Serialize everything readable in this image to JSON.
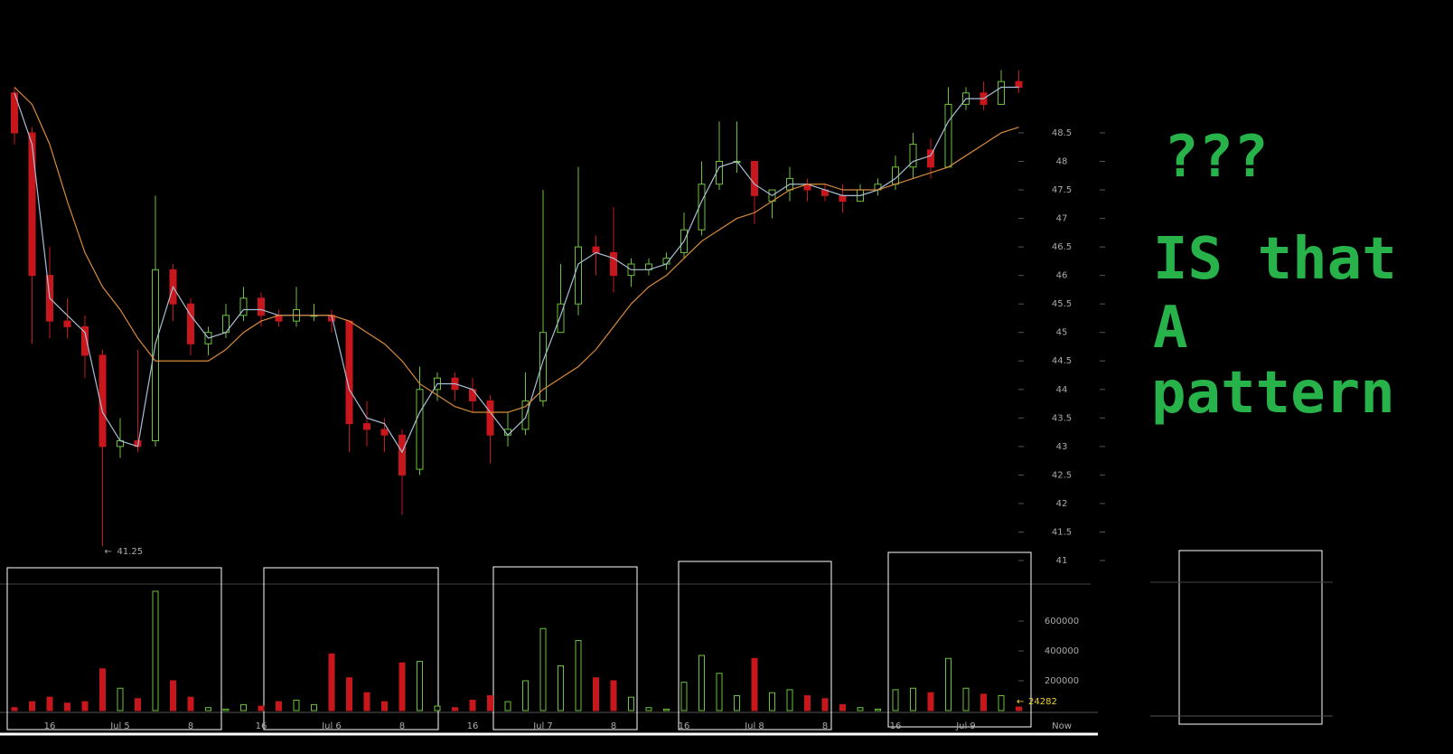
{
  "chart_data": {
    "type": "candlestick",
    "categories": [
      null,
      null,
      "16",
      null,
      null,
      null,
      "Jul 5",
      null,
      null,
      null,
      "8",
      null,
      null,
      null,
      "16",
      null,
      null,
      null,
      "Jul 6",
      null,
      null,
      null,
      "8",
      null,
      null,
      null,
      "16",
      null,
      null,
      null,
      "Jul 7",
      null,
      null,
      null,
      "8",
      null,
      null,
      null,
      "16",
      null,
      null,
      null,
      "Jul 8",
      null,
      null,
      null,
      "8",
      null,
      null,
      null,
      "16",
      null,
      null,
      null,
      "Jul 9",
      null,
      null,
      null
    ],
    "x_end_label": "Now",
    "open": [
      49.2,
      48.5,
      46.0,
      45.2,
      45.1,
      44.6,
      43.0,
      43.1,
      43.1,
      46.1,
      45.5,
      44.8,
      45.0,
      45.3,
      45.6,
      45.3,
      45.2,
      45.3,
      45.3,
      45.2,
      43.4,
      43.3,
      43.2,
      42.6,
      44.0,
      44.2,
      44.0,
      43.8,
      43.2,
      43.3,
      43.8,
      45.0,
      45.5,
      46.5,
      46.4,
      46.0,
      46.1,
      46.2,
      46.4,
      46.8,
      47.6,
      48.0,
      48.0,
      47.3,
      47.5,
      47.6,
      47.5,
      47.4,
      47.3,
      47.5,
      47.6,
      47.9,
      48.2,
      47.9,
      49.0,
      49.2,
      49.0,
      49.4
    ],
    "high": [
      49.3,
      48.6,
      46.5,
      45.6,
      45.3,
      44.7,
      43.5,
      44.7,
      47.4,
      46.2,
      45.6,
      45.1,
      45.5,
      45.8,
      45.7,
      45.4,
      45.8,
      45.5,
      45.4,
      45.2,
      43.8,
      43.5,
      43.3,
      44.4,
      44.3,
      44.3,
      44.2,
      43.9,
      43.6,
      44.3,
      47.5,
      46.2,
      47.9,
      46.7,
      47.2,
      46.3,
      46.3,
      46.4,
      47.1,
      48.0,
      48.7,
      48.7,
      48.0,
      47.5,
      47.9,
      47.7,
      47.6,
      47.6,
      47.6,
      47.7,
      48.1,
      48.5,
      48.4,
      49.3,
      49.3,
      49.4,
      49.6,
      49.6
    ],
    "low": [
      48.3,
      44.8,
      44.9,
      44.9,
      44.2,
      41.25,
      42.8,
      42.9,
      43.0,
      45.2,
      44.6,
      44.6,
      44.9,
      45.2,
      45.1,
      45.1,
      45.1,
      45.2,
      45.0,
      42.9,
      43.0,
      42.9,
      41.8,
      42.5,
      43.8,
      43.8,
      43.6,
      42.7,
      43.0,
      43.2,
      43.7,
      45.0,
      45.3,
      46.0,
      45.7,
      45.8,
      46.0,
      46.1,
      46.3,
      46.7,
      47.5,
      47.8,
      46.9,
      47.0,
      47.3,
      47.3,
      47.3,
      47.1,
      47.3,
      47.4,
      47.5,
      47.7,
      47.7,
      47.9,
      48.9,
      48.9,
      49.0,
      49.2
    ],
    "close": [
      48.5,
      46.0,
      45.2,
      45.1,
      44.6,
      43.0,
      43.1,
      43.0,
      46.1,
      45.5,
      44.8,
      45.0,
      45.3,
      45.6,
      45.3,
      45.2,
      45.4,
      45.3,
      45.2,
      43.4,
      43.3,
      43.2,
      42.5,
      44.0,
      44.2,
      44.0,
      43.8,
      43.2,
      43.3,
      43.8,
      45.0,
      45.5,
      46.5,
      46.4,
      46.0,
      46.2,
      46.2,
      46.3,
      46.8,
      47.6,
      48.0,
      48.0,
      47.4,
      47.5,
      47.7,
      47.5,
      47.4,
      47.3,
      47.5,
      47.6,
      47.9,
      48.3,
      47.9,
      49.0,
      49.2,
      49.0,
      49.4,
      49.3
    ],
    "up_color": "#6cc23a",
    "down_color": "#c8171c",
    "ylim": [
      41,
      50.83
    ],
    "yticks": [
      41,
      41.5,
      42,
      42.5,
      43,
      43.5,
      44,
      44.5,
      45,
      45.5,
      46,
      46.5,
      47,
      47.5,
      48,
      48.5
    ],
    "moving_averages": [
      {
        "color": "#a9bfd6",
        "values": [
          49.2,
          48.3,
          45.6,
          45.3,
          45.0,
          43.6,
          43.1,
          43.0,
          44.8,
          45.8,
          45.3,
          44.9,
          45.0,
          45.4,
          45.4,
          45.3,
          45.3,
          45.3,
          45.3,
          44.0,
          43.5,
          43.4,
          42.9,
          43.6,
          44.1,
          44.1,
          44.0,
          43.6,
          43.2,
          43.5,
          44.5,
          45.3,
          46.2,
          46.4,
          46.3,
          46.1,
          46.1,
          46.2,
          46.6,
          47.3,
          47.9,
          48.0,
          47.6,
          47.4,
          47.6,
          47.6,
          47.5,
          47.4,
          47.4,
          47.5,
          47.7,
          48.0,
          48.1,
          48.7,
          49.1,
          49.1,
          49.3,
          49.3
        ]
      },
      {
        "color": "#d98a3c",
        "values": [
          49.3,
          49.0,
          48.3,
          47.3,
          46.4,
          45.8,
          45.4,
          44.9,
          44.5,
          44.5,
          44.5,
          44.5,
          44.7,
          45.0,
          45.2,
          45.3,
          45.3,
          45.3,
          45.3,
          45.2,
          45.0,
          44.8,
          44.5,
          44.1,
          43.9,
          43.7,
          43.6,
          43.6,
          43.6,
          43.7,
          44.0,
          44.2,
          44.4,
          44.7,
          45.1,
          45.5,
          45.8,
          46.0,
          46.3,
          46.6,
          46.8,
          47.0,
          47.1,
          47.3,
          47.5,
          47.6,
          47.6,
          47.5,
          47.5,
          47.5,
          47.6,
          47.7,
          47.8,
          47.9,
          48.1,
          48.3,
          48.5,
          48.6
        ]
      }
    ],
    "volume": {
      "values": [
        20000,
        60000,
        90000,
        50000,
        60000,
        280000,
        150000,
        80000,
        800000,
        200000,
        90000,
        20000,
        10000,
        40000,
        30000,
        60000,
        70000,
        40000,
        380000,
        220000,
        120000,
        60000,
        320000,
        330000,
        30000,
        20000,
        70000,
        100000,
        60000,
        200000,
        550000,
        300000,
        470000,
        220000,
        200000,
        90000,
        20000,
        10000,
        190000,
        370000,
        250000,
        100000,
        350000,
        120000,
        140000,
        100000,
        80000,
        40000,
        20000,
        10000,
        140000,
        150000,
        120000,
        350000,
        150000,
        110000,
        100000,
        24282
      ],
      "ylim": [
        0,
        850000
      ],
      "yticks": [
        200000,
        400000,
        600000
      ]
    },
    "annotations": [
      "???",
      "IS that",
      "A",
      "pattern"
    ]
  }
}
